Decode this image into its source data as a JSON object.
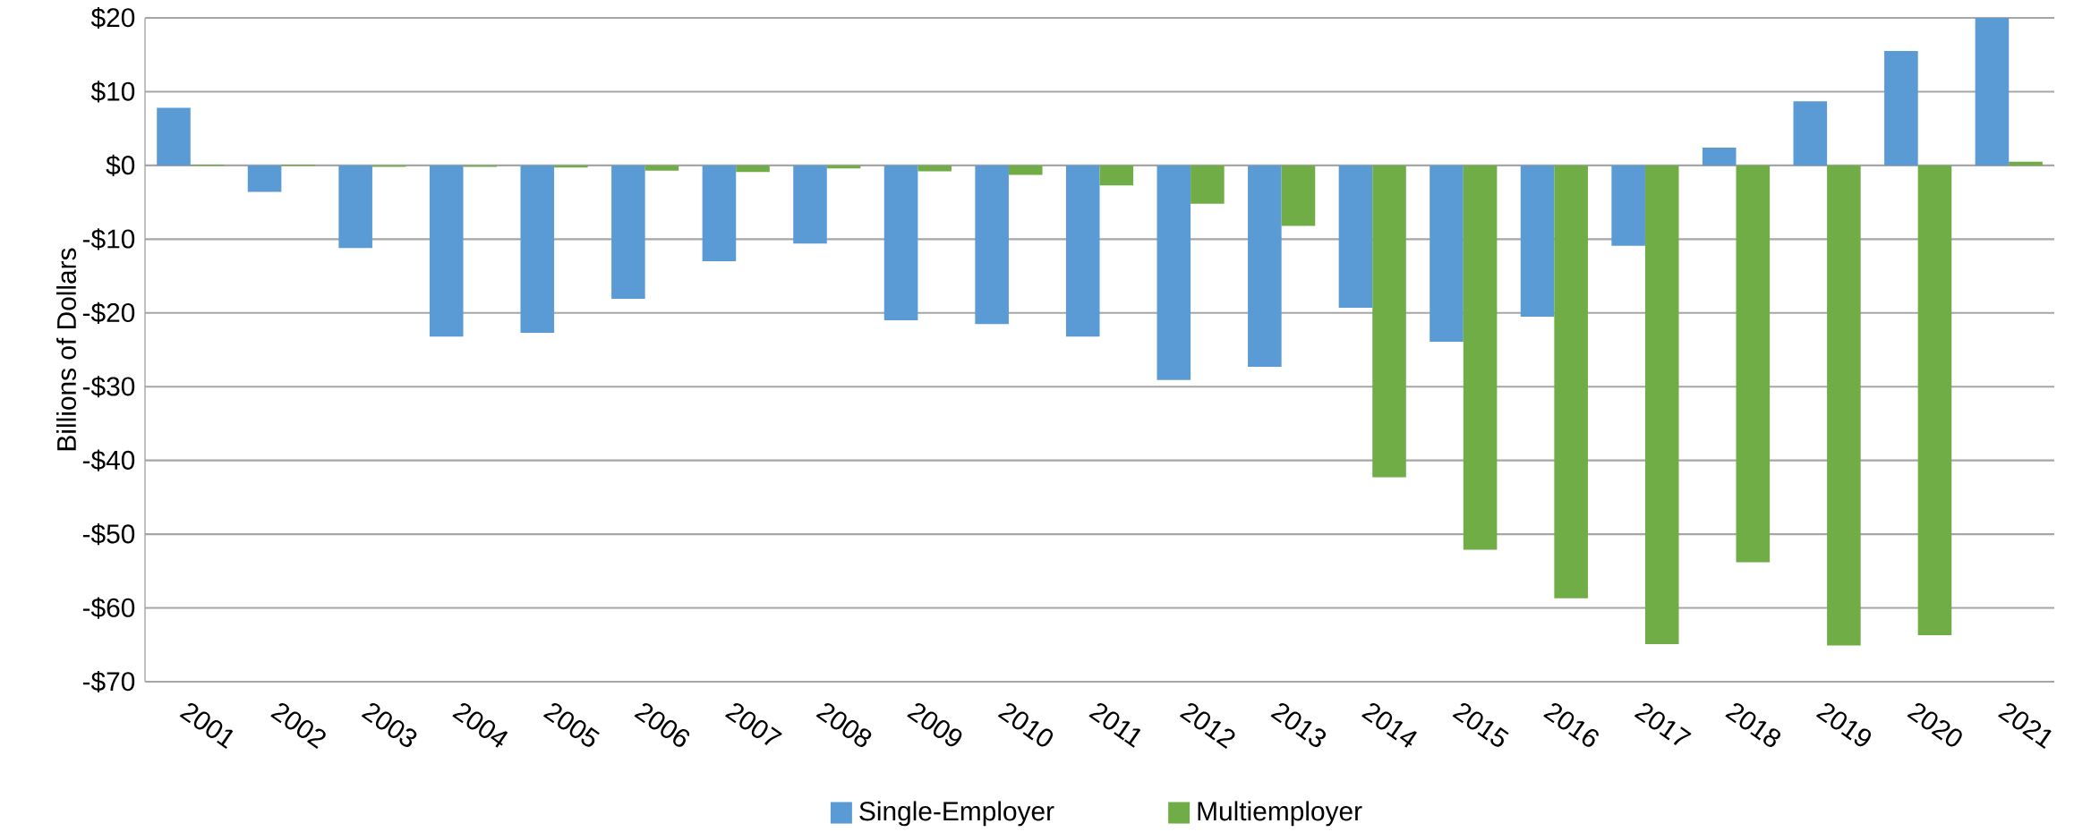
{
  "chart_data": {
    "type": "bar",
    "ylabel": "Billions of Dollars",
    "categories": [
      "2001",
      "2002",
      "2003",
      "2004",
      "2005",
      "2006",
      "2007",
      "2008",
      "2009",
      "2010",
      "2011",
      "2012",
      "2013",
      "2014",
      "2015",
      "2016",
      "2017",
      "2018",
      "2019",
      "2020",
      "2021"
    ],
    "series": [
      {
        "name": "Single-Employer",
        "color": "#5b9bd5",
        "values": [
          7.8,
          -3.6,
          -11.2,
          -23.2,
          -22.7,
          -18.1,
          -13.0,
          -10.6,
          -21.0,
          -21.5,
          -23.2,
          -29.1,
          -27.3,
          -19.3,
          -23.9,
          -20.5,
          -10.9,
          2.4,
          8.7,
          15.5,
          20.0
        ]
      },
      {
        "name": "Multiemployer",
        "color": "#70ad47",
        "values": [
          0.1,
          0.1,
          -0.2,
          -0.2,
          -0.3,
          -0.7,
          -0.9,
          -0.4,
          -0.8,
          -1.3,
          -2.7,
          -5.2,
          -8.2,
          -42.3,
          -52.1,
          -58.7,
          -64.9,
          -53.8,
          -65.1,
          -63.7,
          0.5
        ]
      }
    ],
    "ylim": [
      -70,
      20
    ],
    "yticks": [
      {
        "value": -70,
        "label": "-$70"
      },
      {
        "value": -60,
        "label": "-$60"
      },
      {
        "value": -50,
        "label": "-$50"
      },
      {
        "value": -40,
        "label": "-$40"
      },
      {
        "value": -30,
        "label": "-$30"
      },
      {
        "value": -20,
        "label": "-$20"
      },
      {
        "value": -10,
        "label": "-$10"
      },
      {
        "value": 0,
        "label": "$0"
      },
      {
        "value": 10,
        "label": "$10"
      },
      {
        "value": 20,
        "label": "$20"
      }
    ],
    "grid": "y",
    "legend": "bottom"
  }
}
